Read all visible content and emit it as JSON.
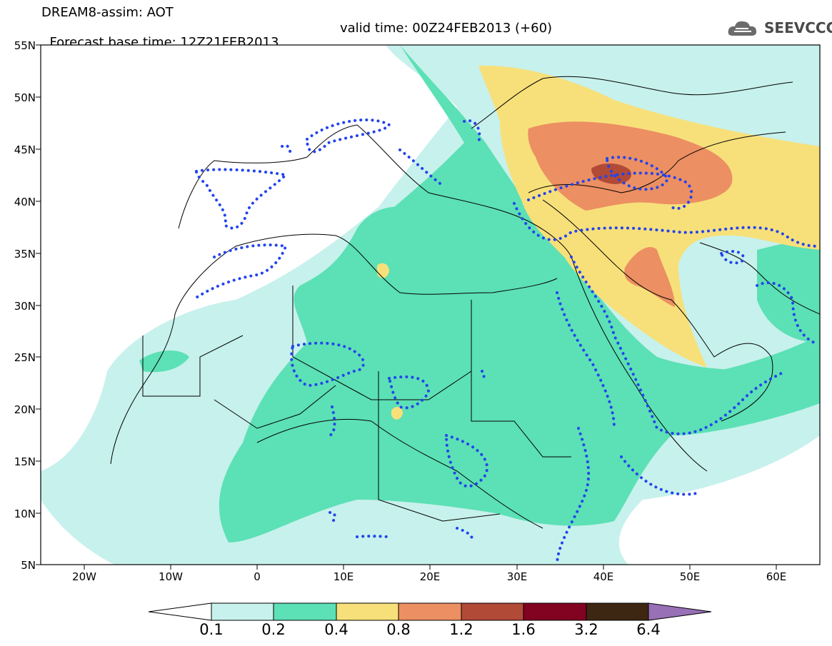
{
  "header": {
    "line1": "DREAM8-assim: AOT",
    "line2_base": "Forecast base time: 12Z21FEB2013",
    "line2_valid": "valid time: 00Z24FEB2013 (+60)"
  },
  "logo": {
    "text": "SEEVCCC",
    "icon": "cloud-logo-icon"
  },
  "map": {
    "region": "North Africa, Europe and Middle East",
    "lon_range": [
      -25,
      65
    ],
    "lat_range": [
      5,
      55
    ],
    "lat_labels": [
      "55N",
      "50N",
      "45N",
      "40N",
      "35N",
      "30N",
      "25N",
      "20N",
      "15N",
      "10N",
      "5N"
    ],
    "lon_labels": [
      "20W",
      "10W",
      "0",
      "10E",
      "20E",
      "30E",
      "40E",
      "50E",
      "60E"
    ]
  },
  "colorbar": {
    "levels": [
      "0.1",
      "0.2",
      "0.4",
      "0.8",
      "1.2",
      "1.6",
      "3.2",
      "6.4"
    ],
    "colors": [
      "#c7f1ec",
      "#5ce0b5",
      "#f7e07a",
      "#ec8f62",
      "#b14a37",
      "#820222",
      "#3d2713",
      "#9870b6"
    ]
  }
}
